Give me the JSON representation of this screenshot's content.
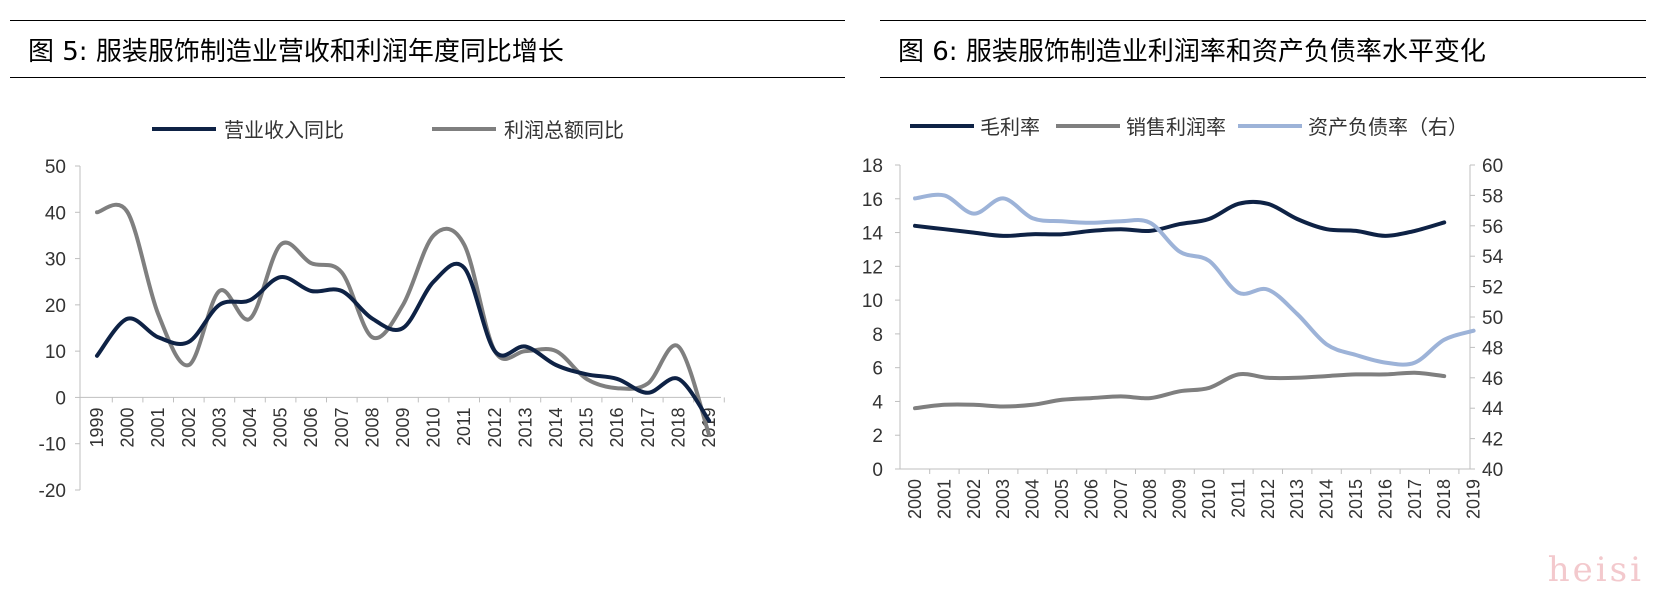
{
  "figures": [
    {
      "title": "图 5:  服装服饰制造业营收和利润年度同比增长",
      "chart_data": {
        "type": "line",
        "x": [
          "1999",
          "2000",
          "2001",
          "2002",
          "2003",
          "2004",
          "2005",
          "2006",
          "2007",
          "2008",
          "2009",
          "2010",
          "2011",
          "2012",
          "2013",
          "2014",
          "2015",
          "2016",
          "2017",
          "2018",
          "2019"
        ],
        "series": [
          {
            "name": "营业收入同比",
            "color": "#0e2245",
            "values": [
              9,
              17,
              13,
              12,
              20,
              21,
              26,
              23,
              23,
              17,
              15,
              25,
              28,
              10,
              11,
              7,
              5,
              4,
              1,
              4,
              -5
            ]
          },
          {
            "name": "利润总额同比",
            "color": "#7f7f7f",
            "values": [
              40,
              40,
              18,
              7,
              23,
              17,
              33,
              29,
              27,
              13,
              20,
              35,
              33,
              10,
              10,
              10,
              4,
              2,
              3,
              11,
              -8
            ]
          }
        ],
        "y_ticks": [
          "50",
          "40",
          "30",
          "20",
          "10",
          "0",
          "-10",
          "-20"
        ],
        "ylim": [
          -20,
          50
        ],
        "legend": "top"
      }
    },
    {
      "title": "图 6:  服装服饰制造业利润率和资产负债率水平变化",
      "chart_data": {
        "type": "line",
        "x": [
          "2000",
          "2001",
          "2002",
          "2003",
          "2004",
          "2005",
          "2006",
          "2007",
          "2008",
          "2009",
          "2010",
          "2011",
          "2012",
          "2013",
          "2014",
          "2015",
          "2016",
          "2017",
          "2018",
          "2019"
        ],
        "series": [
          {
            "name": "毛利率",
            "color": "#0e2245",
            "axis": "left",
            "values": [
              14.4,
              14.2,
              14.0,
              13.8,
              13.9,
              13.9,
              14.1,
              14.2,
              14.1,
              14.5,
              14.8,
              15.7,
              15.7,
              14.8,
              14.2,
              14.1,
              13.8,
              14.1,
              14.6,
              null
            ]
          },
          {
            "name": "销售利润率",
            "color": "#7f7f7f",
            "axis": "left",
            "values": [
              3.6,
              3.8,
              3.8,
              3.7,
              3.8,
              4.1,
              4.2,
              4.3,
              4.2,
              4.6,
              4.8,
              5.6,
              5.4,
              5.4,
              5.5,
              5.6,
              5.6,
              5.7,
              5.5,
              null
            ]
          },
          {
            "name": "资产负债率（右）",
            "color": "#9db3d8",
            "axis": "right",
            "values": [
              57.8,
              58.0,
              56.8,
              57.8,
              56.5,
              56.3,
              56.2,
              56.3,
              56.2,
              54.3,
              53.7,
              51.6,
              51.8,
              50.2,
              48.2,
              47.5,
              47.0,
              47.0,
              48.5,
              49.1
            ]
          }
        ],
        "y_left_ticks": [
          "18",
          "16",
          "14",
          "12",
          "10",
          "8",
          "6",
          "4",
          "2",
          "0"
        ],
        "y_right_ticks": [
          "60",
          "58",
          "56",
          "54",
          "52",
          "50",
          "48",
          "46",
          "44",
          "42",
          "40"
        ],
        "ylim_left": [
          0,
          18
        ],
        "ylim_right": [
          40,
          60
        ],
        "legend": "top"
      }
    }
  ],
  "watermark": "heisi"
}
